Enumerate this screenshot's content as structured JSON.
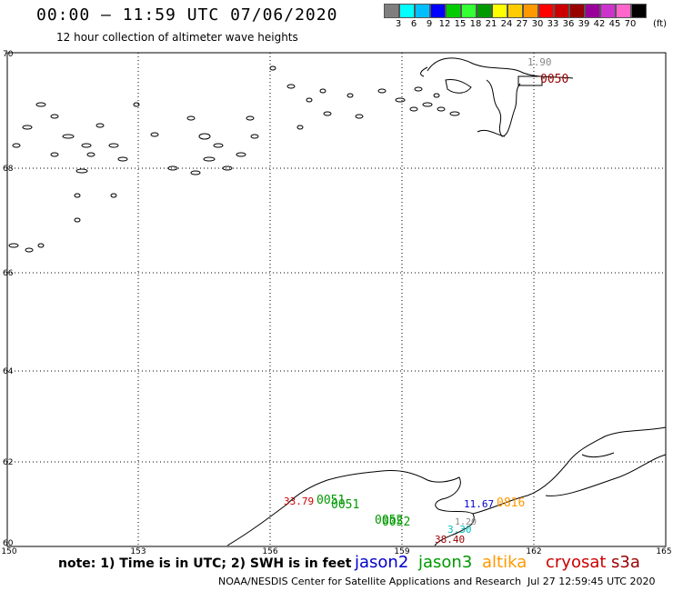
{
  "header": {
    "title": "00:00 – 11:59 UTC 07/06/2020",
    "subtitle": "12 hour collection of altimeter wave heights"
  },
  "scale": {
    "colors": [
      "#7f7f7f",
      "#00ffff",
      "#00bfff",
      "#0000ff",
      "#00cc00",
      "#33ff33",
      "#009900",
      "#ffff00",
      "#ffcc00",
      "#ff9900",
      "#ff0000",
      "#cc0000",
      "#990000",
      "#990099",
      "#cc33cc",
      "#ff66cc",
      "#000000"
    ],
    "labels": [
      "3",
      "6",
      "9",
      "12",
      "15",
      "18",
      "21",
      "24",
      "27",
      "30",
      "33",
      "36",
      "39",
      "42",
      "45",
      "70"
    ],
    "units": "(ft)"
  },
  "axes": {
    "lat_labels": [
      "70",
      "68",
      "66",
      "64",
      "62",
      "60"
    ],
    "lon_labels": [
      "150",
      "153",
      "156",
      "159",
      "162",
      "165"
    ]
  },
  "obs": [
    {
      "text": "1.90",
      "color": "#888888"
    },
    {
      "text": "0050",
      "color": "#990000"
    },
    {
      "text": "33.79",
      "color": "#cc0000"
    },
    {
      "text": "0051",
      "color": "#009900"
    },
    {
      "text": "0051",
      "color": "#009900"
    },
    {
      "text": "0052",
      "color": "#009900"
    },
    {
      "text": "0052",
      "color": "#009900"
    },
    {
      "text": "11.67",
      "color": "#0000cc"
    },
    {
      "text": "0816",
      "color": "#ff9900"
    },
    {
      "text": "3.30",
      "color": "#00bfbf"
    },
    {
      "text": "38.40",
      "color": "#990000"
    },
    {
      "text": "1.20",
      "color": "#888888"
    }
  ],
  "footer": {
    "note": "note: 1) Time is in UTC; 2) SWH is in feet",
    "satellites": [
      {
        "name": "jason2",
        "color": "#0000cc"
      },
      {
        "name": "jason3",
        "color": "#009900"
      },
      {
        "name": "altika",
        "color": "#ff9900"
      },
      {
        "name": "cryosat",
        "color": "#cc0000"
      },
      {
        "name": "s3a",
        "color": "#990000"
      }
    ],
    "credit": "NOAA/NESDIS Center for Satellite Applications and Research",
    "timestamp": "Jul 27 12:59:45 UTC 2020"
  }
}
